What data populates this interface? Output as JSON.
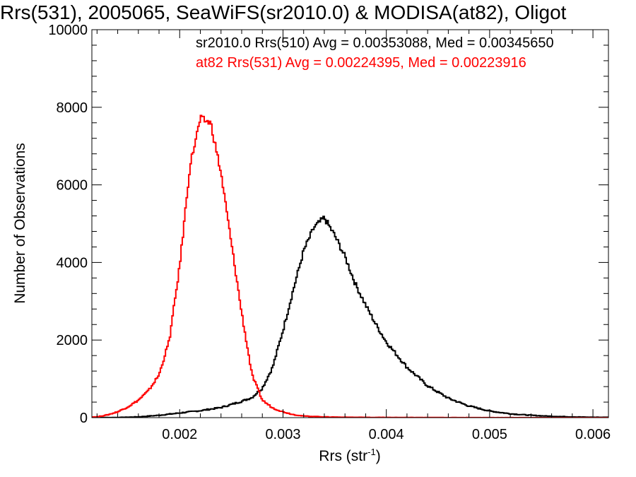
{
  "chart_data": {
    "type": "histogram",
    "title": "Rrs(531), 2005065, SeaWiFS(sr2010.0) & MODISA(at82), Oligot",
    "xlabel": "Rrs (str",
    "xlabel_sup": "-1",
    "xlabel_close": ")",
    "ylabel": "Number of Observations",
    "xlim": [
      0.00115,
      0.00615
    ],
    "ylim": [
      0,
      10000
    ],
    "x_ticks": [
      0.002,
      0.003,
      0.004,
      0.005,
      0.006
    ],
    "x_tick_labels": [
      "0.002",
      "0.003",
      "0.004",
      "0.005",
      "0.006"
    ],
    "y_ticks": [
      0,
      2000,
      4000,
      6000,
      8000,
      10000
    ],
    "y_tick_labels": [
      "0",
      "2000",
      "4000",
      "6000",
      "8000",
      "10000"
    ],
    "grid": false,
    "legend_position": "top-right",
    "series": [
      {
        "name": "sr2010.0 Rrs(510) Avg = 0.00353088, Med = 0.00345650",
        "color": "#000000",
        "x": [
          0.0012,
          0.0014,
          0.0016,
          0.0018,
          0.002,
          0.0022,
          0.0024,
          0.0026,
          0.0027,
          0.0028,
          0.0029,
          0.003,
          0.0031,
          0.0032,
          0.0033,
          0.0034,
          0.0035,
          0.0036,
          0.0037,
          0.0038,
          0.0039,
          0.004,
          0.0042,
          0.0044,
          0.0046,
          0.0048,
          0.005,
          0.0052,
          0.0054,
          0.0056,
          0.0058,
          0.006
        ],
        "values": [
          0,
          5,
          20,
          60,
          120,
          180,
          260,
          420,
          520,
          760,
          1300,
          2250,
          3300,
          4300,
          4900,
          5150,
          4700,
          4150,
          3450,
          2900,
          2400,
          1950,
          1300,
          820,
          500,
          300,
          170,
          100,
          60,
          35,
          20,
          10
        ]
      },
      {
        "name": "at82 Rrs(531) Avg = 0.00224395, Med = 0.00223916",
        "color": "#ff0000",
        "x": [
          0.0012,
          0.0013,
          0.0014,
          0.0015,
          0.0016,
          0.0017,
          0.0018,
          0.0019,
          0.002,
          0.0021,
          0.0022,
          0.0023,
          0.0024,
          0.0025,
          0.0026,
          0.0027,
          0.0028,
          0.0029,
          0.003,
          0.0031,
          0.0032,
          0.0034,
          0.0036,
          0.004,
          0.0045,
          0.005,
          0.0055,
          0.006
        ],
        "values": [
          20,
          70,
          150,
          280,
          450,
          700,
          1100,
          2000,
          3900,
          6500,
          7700,
          7600,
          6300,
          4500,
          2700,
          1100,
          450,
          250,
          150,
          80,
          40,
          20,
          10,
          5,
          3,
          1,
          0,
          0
        ]
      }
    ]
  }
}
